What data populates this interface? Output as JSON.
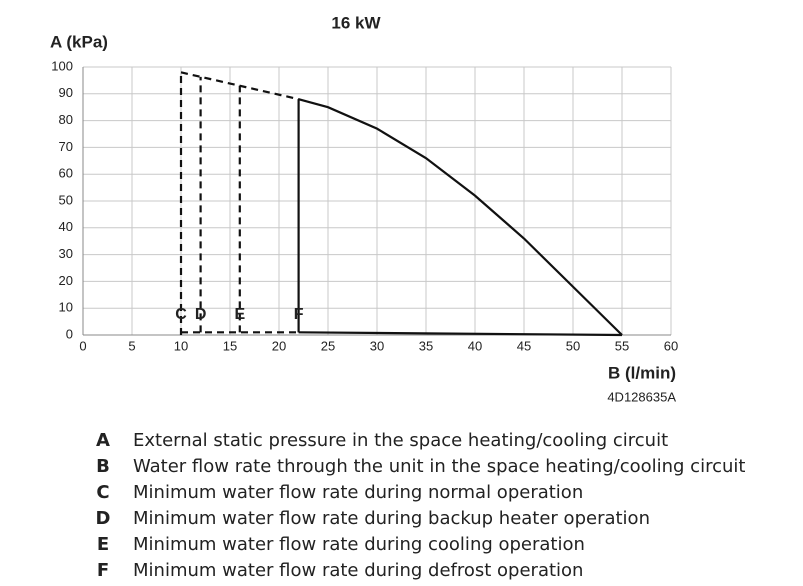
{
  "chart_data": {
    "type": "line",
    "title": "16 kW",
    "y_label": "A (kPa)",
    "x_label": "B (l/min)",
    "code": "4D128635A",
    "xlim": [
      0,
      60
    ],
    "xticks": [
      0,
      5,
      10,
      15,
      20,
      25,
      30,
      35,
      40,
      45,
      50,
      55,
      60
    ],
    "ylim": [
      0,
      100
    ],
    "yticks": [
      0,
      10,
      20,
      30,
      40,
      50,
      60,
      70,
      80,
      90,
      100
    ],
    "grid": true,
    "series": [
      {
        "color": "#111111",
        "dashed": false,
        "x": [
          22,
          25,
          30,
          35,
          40,
          45,
          50,
          55
        ],
        "values": [
          88,
          85,
          77,
          66,
          52,
          36,
          18,
          0
        ]
      },
      {
        "color": "#111111",
        "dashed": false,
        "x": [
          22,
          55
        ],
        "values": [
          1,
          0
        ]
      },
      {
        "color": "#111111",
        "dashed": false,
        "x": [
          22,
          22
        ],
        "values": [
          1,
          88
        ]
      },
      {
        "color": "#111111",
        "dashed": true,
        "x": [
          10,
          22
        ],
        "values": [
          98,
          88
        ]
      },
      {
        "color": "#111111",
        "dashed": true,
        "x": [
          10,
          22
        ],
        "values": [
          1,
          1
        ]
      },
      {
        "color": "#111111",
        "dashed": true,
        "x": [
          10,
          10
        ],
        "values": [
          0,
          98
        ]
      },
      {
        "color": "#111111",
        "dashed": true,
        "x": [
          12,
          12
        ],
        "values": [
          1,
          96.3
        ]
      },
      {
        "color": "#111111",
        "dashed": true,
        "x": [
          16,
          16
        ],
        "values": [
          1,
          93
        ]
      }
    ],
    "annotations": [
      {
        "text": "C",
        "x": 10,
        "y": 6
      },
      {
        "text": "D",
        "x": 12,
        "y": 6
      },
      {
        "text": "E",
        "x": 16,
        "y": 6
      },
      {
        "text": "F",
        "x": 22,
        "y": 6
      }
    ]
  },
  "legend_list": [
    {
      "key": "A",
      "text": "External static pressure in the space heating/cooling circuit"
    },
    {
      "key": "B",
      "text": "Water flow rate through the unit in the space heating/cooling circuit"
    },
    {
      "key": "C",
      "text": "Minimum water flow rate during normal operation"
    },
    {
      "key": "D",
      "text": "Minimum water flow rate during backup heater operation"
    },
    {
      "key": "E",
      "text": "Minimum water flow rate during cooling operation"
    },
    {
      "key": "F",
      "text": "Minimum water flow rate during defrost operation"
    }
  ]
}
